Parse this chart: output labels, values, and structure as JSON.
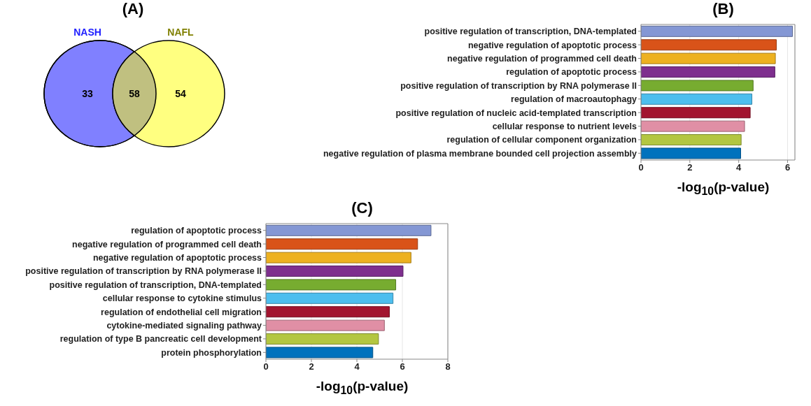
{
  "chart_data": [
    {
      "type": "other",
      "title": "(A)",
      "categories": [
        "NASH",
        null,
        "NAFL"
      ],
      "values": [
        33,
        58,
        54
      ],
      "colors": [
        "#8080ff",
        "#c0c080",
        "#ffff80"
      ],
      "data_labels": true
    },
    {
      "type": "bar",
      "orientation": "horizontal",
      "title": "(B)",
      "xlabel": "-log$_{10}$(p-value)",
      "categories": [
        "positive regulation of transcription, DNA-templated",
        "negative regulation of apoptotic process",
        "negative regulation of programmed cell death",
        "regulation of apoptotic process",
        "positive regulation of transcription by RNA polymerase II",
        "regulation of macroautophagy",
        "positive regulation of nucleic acid-templated transcription",
        "cellular response to nutrient levels",
        "regulation of cellular component organization",
        "negative regulation of plasma membrane bounded cell projection assembly"
      ],
      "values": [
        6.2,
        5.54,
        5.5,
        5.48,
        4.59,
        4.54,
        4.47,
        4.24,
        4.1,
        4.08
      ],
      "colors": [
        "#8497d4",
        "#d95319",
        "#edb120",
        "#7e2f8e",
        "#77ac30",
        "#4dbeee",
        "#a2142f",
        "#e08fa5",
        "#b3c641",
        "#0072bd"
      ],
      "xlim": [
        0,
        6.3
      ],
      "xticks": [
        0,
        2,
        4,
        6
      ],
      "grid": "x"
    },
    {
      "type": "bar",
      "orientation": "horizontal",
      "title": "(C)",
      "xlabel": "-log$_{10}$(p-value)",
      "categories": [
        "regulation of apoptotic process",
        "negative regulation of programmed cell death",
        "negative regulation of apoptotic process",
        "positive regulation of transcription by RNA polymerase II",
        "positive regulation of transcription, DNA-templated",
        "cellular response to cytokine stimulus",
        "regulation of endothelial cell migration",
        "cytokine-mediated signaling pathway",
        "regulation of type B pancreatic cell development",
        "protein phosphorylation"
      ],
      "values": [
        7.26,
        6.67,
        6.38,
        6.03,
        5.71,
        5.59,
        5.43,
        5.21,
        4.95,
        4.7
      ],
      "colors": [
        "#8497d4",
        "#d95319",
        "#edb120",
        "#7e2f8e",
        "#77ac30",
        "#4dbeee",
        "#a2142f",
        "#e08fa5",
        "#b3c641",
        "#0072bd"
      ],
      "xlim": [
        0,
        8
      ],
      "xticks": [
        0,
        2,
        4,
        6,
        8
      ],
      "grid": "x"
    }
  ]
}
